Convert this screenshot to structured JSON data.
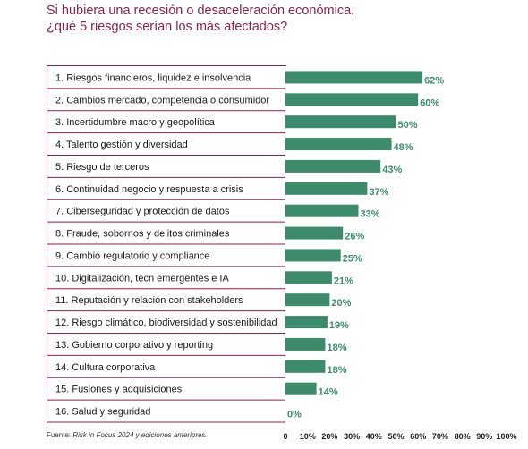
{
  "title_line1": "Si hubiera una recesión o desaceleración económica,",
  "title_line2": "¿qué 5 riesgos serían los más afectados?",
  "source_prefix": "Fuente: ",
  "source_italic": "Risk in Focus 2024 y ediciones anteriores.",
  "colors": {
    "bar": "#3c8c6c",
    "value_text": "#3c8c6c",
    "title": "#8c2346",
    "row_line": "#8c2346"
  },
  "chart_data": {
    "type": "bar",
    "orientation": "horizontal",
    "categories": [
      "1. Riesgos financieros, liquidez e insolvencia",
      "2. Cambios mercado, competencia o consumidor",
      "3. Incertidumbre macro y geopolítica",
      "4. Talento gestión y diversidad",
      "5. Riesgo de terceros",
      "6. Continuidad  negocio y respuesta a crisis",
      "7. Ciberseguridad y protección de datos",
      "8. Fraude, sobornos y delitos criminales",
      "9. Cambio regulatorio y compliance",
      "10. Digitalización, tecn emergentes e IA",
      "11. Reputación y relación con stakeholders",
      "12. Riesgo climático, biodiversidad y sostenibilidad",
      "13. Gobierno corporativo y reporting",
      "14. Cultura corporativa",
      "15. Fusiones y adquisiciones",
      "16. Salud y seguridad"
    ],
    "values": [
      62,
      60,
      50,
      48,
      43,
      37,
      33,
      26,
      25,
      21,
      20,
      19,
      18,
      18,
      14,
      0
    ],
    "value_labels": [
      "62%",
      "60%",
      "50%",
      "48%",
      "43%",
      "37%",
      "33%",
      "26%",
      "25%",
      "21%",
      "20%",
      "19%",
      "18%",
      "18%",
      "14%",
      "0%"
    ],
    "x_ticks": [
      "0",
      "10%",
      "20%",
      "30%",
      "40%",
      "50%",
      "60%",
      "70%",
      "80%",
      "90%",
      "100%"
    ],
    "xlim": [
      0,
      100
    ],
    "grid": false
  }
}
